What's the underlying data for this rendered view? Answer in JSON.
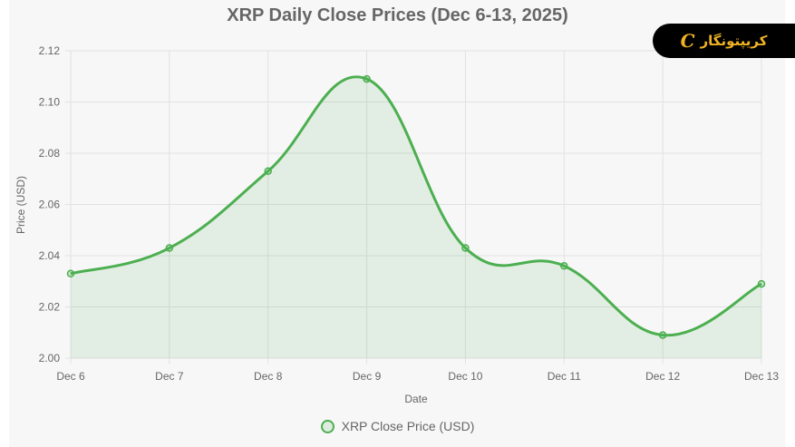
{
  "chart_data": {
    "type": "line",
    "title": "XRP Daily Close Prices (Dec 6-13, 2025)",
    "xlabel": "Date",
    "ylabel": "Price (USD)",
    "categories": [
      "Dec 6",
      "Dec 7",
      "Dec 8",
      "Dec 9",
      "Dec 10",
      "Dec 11",
      "Dec 12",
      "Dec 13"
    ],
    "series": [
      {
        "name": "XRP Close Price (USD)",
        "values": [
          2.033,
          2.043,
          2.073,
          2.109,
          2.043,
          2.036,
          2.009,
          2.029
        ],
        "color": "#4caf50",
        "fill": "rgba(76,175,80,0.12)"
      }
    ],
    "ylim": [
      2.0,
      2.12
    ],
    "yticks": [
      "2.12",
      "2.10",
      "2.08",
      "2.06",
      "2.04",
      "2.02",
      "2.00"
    ],
    "grid": true,
    "legend_position": "bottom"
  },
  "badge": {
    "text": "کریپتونگار",
    "logo": "C"
  }
}
